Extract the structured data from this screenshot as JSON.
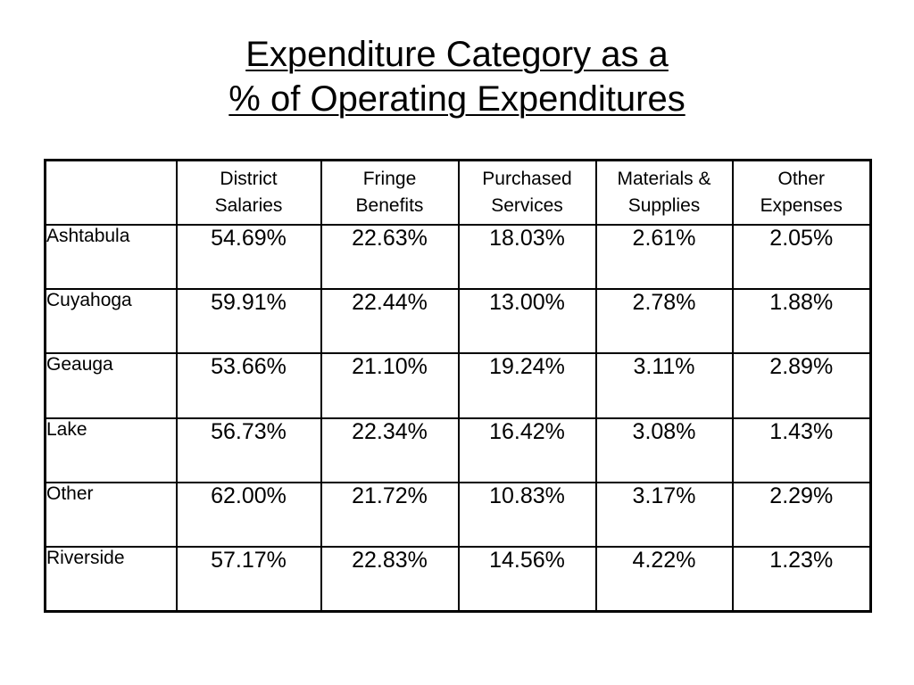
{
  "title": {
    "line1": "Expenditure Category as a",
    "line2": "% of Operating Expenditures"
  },
  "table": {
    "corner": "",
    "columns": [
      "District\nSalaries",
      "Fringe\nBenefits",
      "Purchased\nServices",
      "Materials &\nSupplies",
      "Other\nExpenses"
    ],
    "rows": [
      {
        "label": "Ashtabula",
        "values": [
          "54.69%",
          "22.63%",
          "18.03%",
          "2.61%",
          "2.05%"
        ]
      },
      {
        "label": "Cuyahoga",
        "values": [
          "59.91%",
          "22.44%",
          "13.00%",
          "2.78%",
          "1.88%"
        ]
      },
      {
        "label": "Geauga",
        "values": [
          "53.66%",
          "21.10%",
          "19.24%",
          "3.11%",
          "2.89%"
        ]
      },
      {
        "label": "Lake",
        "values": [
          "56.73%",
          "22.34%",
          "16.42%",
          "3.08%",
          "1.43%"
        ]
      },
      {
        "label": "Other",
        "values": [
          "62.00%",
          "21.72%",
          "10.83%",
          "3.17%",
          "2.29%"
        ]
      },
      {
        "label": "Riverside",
        "values": [
          "57.17%",
          "22.83%",
          "14.56%",
          "4.22%",
          "1.23%"
        ]
      }
    ]
  }
}
